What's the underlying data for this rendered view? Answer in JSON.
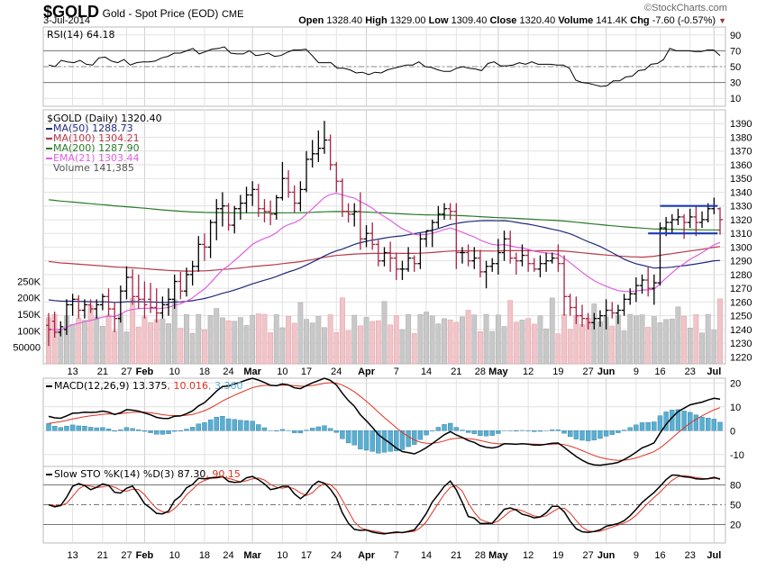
{
  "header": {
    "symbol": "$GOLD",
    "description": "Gold - Spot Price (EOD)",
    "exchange": "CME",
    "date": "3-Jul-2014",
    "copyright": "©StockCharts.com",
    "open_label": "Open",
    "open": "1328.40",
    "high_label": "High",
    "high": "1329.00",
    "low_label": "Low",
    "low": "1309.40",
    "close_label": "Close",
    "close": "1320.40",
    "volume_label": "Volume",
    "volume": "141.4K",
    "chg_label": "Chg",
    "chg": "-7.60 (-0.57%)",
    "chg_icon": "down-triangle-icon"
  },
  "colors": {
    "up_bar": "#000000",
    "down_bar": "#aa2244",
    "ma50": "#1f2a7a",
    "ma100": "#b83a4a",
    "ma200": "#2a7a2a",
    "ema21": "#e060e0",
    "vol_up": "#c8c8c8",
    "vol_down": "#f0c4c8",
    "macd": "#000000",
    "signal": "#dd3322",
    "hist": "#5aaed0",
    "stok": "#000000",
    "stod": "#dd3322",
    "trendline": "#1a3bb5",
    "grid": "#e2e2e2"
  },
  "chart_data": [
    {
      "type": "line",
      "panel": "rsi",
      "legend": "RSI(14) 64.18",
      "ylim": [
        0,
        100
      ],
      "yticks": [
        90,
        70,
        50,
        30,
        10
      ],
      "reference_lines": [
        70,
        50,
        30
      ],
      "values": [
        52,
        50,
        58,
        56,
        55,
        58,
        53,
        52,
        61,
        62,
        57,
        55,
        59,
        52,
        55,
        56,
        56,
        57,
        61,
        63,
        67,
        67,
        70,
        73,
        66,
        69,
        72,
        73,
        75,
        67,
        66,
        66,
        70,
        64,
        65,
        67,
        63,
        64,
        68,
        71,
        71,
        72,
        64,
        55,
        55,
        55,
        48,
        48,
        46,
        42,
        43,
        40,
        43,
        42,
        46,
        48,
        50,
        52,
        52,
        56,
        50,
        49,
        46,
        44,
        44,
        48,
        50,
        48,
        47,
        45,
        54,
        56,
        51,
        51,
        52,
        55,
        53,
        56,
        53,
        53,
        53,
        52,
        52,
        48,
        33,
        30,
        29,
        27,
        25,
        26,
        32,
        32,
        37,
        38,
        45,
        46,
        53,
        54,
        59,
        73,
        70,
        70,
        70,
        69,
        69,
        71,
        71,
        64
      ]
    },
    {
      "type": "ohlc",
      "panel": "price",
      "legend": "$GOLD (Daily) 1320.40",
      "ylim": [
        1215,
        1400
      ],
      "yticks": [
        1390,
        1380,
        1370,
        1360,
        1350,
        1340,
        1330,
        1320,
        1310,
        1300,
        1290,
        1280,
        1270,
        1260,
        1250,
        1240,
        1230,
        1220
      ],
      "x_tick_labels": [
        "13",
        "21",
        "27",
        "Feb",
        "10",
        "18",
        "24",
        "Mar",
        "10",
        "17",
        "24",
        "Apr",
        "7",
        "14",
        "21",
        "28",
        "May",
        "12",
        "19",
        "27",
        "Jun",
        "9",
        "16",
        "23",
        "Jul"
      ],
      "bars": [
        [
          1243,
          1252,
          1228,
          1240
        ],
        [
          1246,
          1253,
          1234,
          1238
        ],
        [
          1238,
          1246,
          1235,
          1242
        ],
        [
          1240,
          1262,
          1236,
          1258
        ],
        [
          1258,
          1266,
          1250,
          1262
        ],
        [
          1262,
          1265,
          1248,
          1254
        ],
        [
          1254,
          1262,
          1248,
          1258
        ],
        [
          1258,
          1262,
          1252,
          1255
        ],
        [
          1255,
          1262,
          1248,
          1258
        ],
        [
          1258,
          1266,
          1254,
          1264
        ],
        [
          1264,
          1270,
          1250,
          1255
        ],
        [
          1255,
          1260,
          1238,
          1248
        ],
        [
          1248,
          1272,
          1245,
          1268
        ],
        [
          1268,
          1286,
          1262,
          1278
        ],
        [
          1278,
          1284,
          1258,
          1264
        ],
        [
          1264,
          1280,
          1255,
          1262
        ],
        [
          1262,
          1275,
          1248,
          1258
        ],
        [
          1262,
          1274,
          1252,
          1256
        ],
        [
          1256,
          1270,
          1245,
          1252
        ],
        [
          1252,
          1264,
          1248,
          1258
        ],
        [
          1258,
          1270,
          1250,
          1262
        ],
        [
          1262,
          1280,
          1255,
          1275
        ],
        [
          1275,
          1282,
          1262,
          1268
        ],
        [
          1268,
          1285,
          1264,
          1280
        ],
        [
          1280,
          1290,
          1272,
          1286
        ],
        [
          1286,
          1308,
          1282,
          1302
        ],
        [
          1302,
          1310,
          1290,
          1300
        ],
        [
          1300,
          1320,
          1292,
          1318
        ],
        [
          1318,
          1335,
          1305,
          1328
        ],
        [
          1328,
          1340,
          1315,
          1330
        ],
        [
          1330,
          1332,
          1312,
          1316
        ],
        [
          1316,
          1330,
          1310,
          1328
        ],
        [
          1328,
          1338,
          1320,
          1332
        ],
        [
          1332,
          1344,
          1325,
          1338
        ],
        [
          1338,
          1348,
          1330,
          1342
        ],
        [
          1342,
          1346,
          1322,
          1328
        ],
        [
          1328,
          1335,
          1318,
          1326
        ],
        [
          1326,
          1334,
          1316,
          1324
        ],
        [
          1324,
          1338,
          1320,
          1336
        ],
        [
          1336,
          1362,
          1334,
          1350
        ],
        [
          1350,
          1356,
          1336,
          1340
        ],
        [
          1340,
          1345,
          1325,
          1332
        ],
        [
          1332,
          1348,
          1326,
          1342
        ],
        [
          1342,
          1370,
          1340,
          1364
        ],
        [
          1364,
          1378,
          1358,
          1368
        ],
        [
          1368,
          1385,
          1362,
          1372
        ],
        [
          1372,
          1392,
          1368,
          1378
        ],
        [
          1378,
          1382,
          1356,
          1360
        ],
        [
          1360,
          1362,
          1340,
          1348
        ],
        [
          1348,
          1350,
          1322,
          1326
        ],
        [
          1326,
          1332,
          1318,
          1324
        ],
        [
          1324,
          1332,
          1315,
          1326
        ],
        [
          1326,
          1340,
          1298,
          1306
        ],
        [
          1306,
          1316,
          1300,
          1310
        ],
        [
          1310,
          1318,
          1298,
          1302
        ],
        [
          1302,
          1305,
          1286,
          1290
        ],
        [
          1290,
          1300,
          1286,
          1296
        ],
        [
          1296,
          1304,
          1282,
          1292
        ],
        [
          1292,
          1296,
          1276,
          1284
        ],
        [
          1284,
          1290,
          1276,
          1284
        ],
        [
          1284,
          1300,
          1282,
          1292
        ],
        [
          1292,
          1294,
          1282,
          1288
        ],
        [
          1288,
          1310,
          1284,
          1306
        ],
        [
          1306,
          1312,
          1300,
          1312
        ],
        [
          1312,
          1320,
          1300,
          1318
        ],
        [
          1318,
          1330,
          1314,
          1324
        ],
        [
          1324,
          1332,
          1320,
          1328
        ],
        [
          1328,
          1332,
          1320,
          1326
        ],
        [
          1326,
          1332,
          1284,
          1296
        ],
        [
          1296,
          1300,
          1288,
          1296
        ],
        [
          1296,
          1302,
          1286,
          1290
        ],
        [
          1290,
          1300,
          1284,
          1292
        ],
        [
          1292,
          1298,
          1278,
          1282
        ],
        [
          1282,
          1290,
          1270,
          1286
        ],
        [
          1286,
          1292,
          1282,
          1288
        ],
        [
          1288,
          1306,
          1280,
          1296
        ],
        [
          1296,
          1312,
          1290,
          1306
        ],
        [
          1306,
          1312,
          1288,
          1292
        ],
        [
          1292,
          1296,
          1280,
          1290
        ],
        [
          1290,
          1302,
          1286,
          1294
        ],
        [
          1294,
          1298,
          1282,
          1288
        ],
        [
          1288,
          1292,
          1282,
          1284
        ],
        [
          1284,
          1294,
          1278,
          1288
        ],
        [
          1288,
          1296,
          1282,
          1290
        ],
        [
          1290,
          1296,
          1288,
          1292
        ],
        [
          1292,
          1302,
          1282,
          1288
        ],
        [
          1288,
          1294,
          1250,
          1264
        ],
        [
          1264,
          1266,
          1250,
          1256
        ],
        [
          1256,
          1264,
          1244,
          1250
        ],
        [
          1250,
          1258,
          1242,
          1248
        ],
        [
          1248,
          1252,
          1240,
          1245
        ],
        [
          1245,
          1252,
          1240,
          1248
        ],
        [
          1248,
          1254,
          1242,
          1250
        ],
        [
          1250,
          1262,
          1240,
          1254
        ],
        [
          1254,
          1260,
          1248,
          1252
        ],
        [
          1252,
          1258,
          1244,
          1254
        ],
        [
          1254,
          1266,
          1250,
          1262
        ],
        [
          1262,
          1270,
          1258,
          1266
        ],
        [
          1266,
          1278,
          1260,
          1272
        ],
        [
          1272,
          1280,
          1266,
          1276
        ],
        [
          1276,
          1286,
          1264,
          1270
        ],
        [
          1270,
          1280,
          1258,
          1274
        ],
        [
          1274,
          1318,
          1272,
          1314
        ],
        [
          1314,
          1322,
          1308,
          1318
        ],
        [
          1318,
          1324,
          1310,
          1320
        ],
        [
          1320,
          1328,
          1316,
          1322
        ],
        [
          1322,
          1324,
          1306,
          1318
        ],
        [
          1318,
          1328,
          1314,
          1322
        ],
        [
          1322,
          1330,
          1308,
          1318
        ],
        [
          1318,
          1326,
          1314,
          1320
        ],
        [
          1320,
          1332,
          1318,
          1328
        ],
        [
          1328,
          1336,
          1324,
          1330
        ],
        [
          1328,
          1329,
          1309,
          1320
        ]
      ],
      "series": [
        {
          "name": "MA(50)",
          "label": "MA(50) 1288.73"
        },
        {
          "name": "MA(100)",
          "label": "MA(100) 1304.21"
        },
        {
          "name": "MA(200)",
          "label": "MA(200) 1287.90"
        },
        {
          "name": "EMA(21)",
          "label": "EMA(21) 1303.44"
        },
        {
          "name": "Volume",
          "label": "Volume 141,385"
        }
      ],
      "trendlines": [
        {
          "from": 102,
          "to": 111,
          "value": 1330
        },
        {
          "from": 100,
          "to": 111,
          "value": 1310
        }
      ]
    },
    {
      "type": "bar",
      "panel": "volume",
      "ylabel_ticks": [
        "250K",
        "200K",
        "150K",
        "100K",
        "50000"
      ],
      "ylim": [
        0,
        300000
      ]
    },
    {
      "type": "line",
      "panel": "macd",
      "legend_name": "MACD(12,26,9)",
      "legend_macd": "13.375",
      "legend_signal": "10.016",
      "legend_hist": "3.360",
      "ylim": [
        -15,
        22
      ],
      "yticks": [
        20,
        10,
        0,
        -10
      ]
    },
    {
      "type": "line",
      "panel": "sto",
      "legend_name": "Slow STO %K(14) %D(3)",
      "legend_k": "87.30",
      "legend_d": "90.15",
      "ylim": [
        0,
        100
      ],
      "yticks": [
        80,
        50,
        20
      ],
      "reference_lines": [
        80,
        50,
        20
      ]
    }
  ]
}
